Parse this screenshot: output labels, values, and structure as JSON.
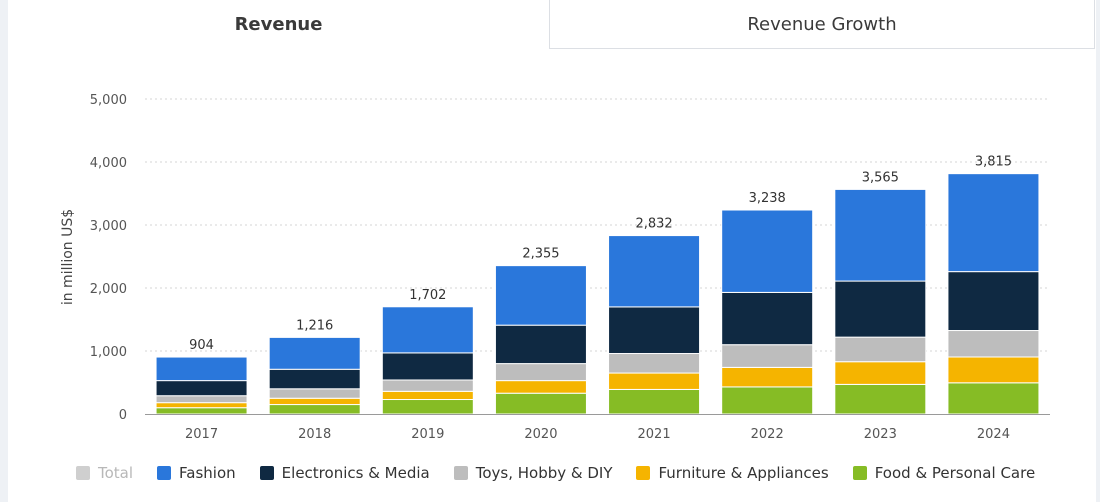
{
  "tabs": [
    {
      "label": "Revenue",
      "active": true
    },
    {
      "label": "Revenue Growth",
      "active": false
    }
  ],
  "chart_data": {
    "type": "bar",
    "stacked": true,
    "categories": [
      "2017",
      "2018",
      "2019",
      "2020",
      "2021",
      "2022",
      "2023",
      "2024"
    ],
    "ylabel": "in million US$",
    "ylim": [
      0,
      5000
    ],
    "yticks": [
      0,
      1000,
      2000,
      3000,
      4000,
      5000
    ],
    "ytick_labels": [
      "0",
      "1,000",
      "2,000",
      "3,000",
      "4,000",
      "5,000"
    ],
    "grid": true,
    "legend_position": "bottom",
    "totals": [
      904,
      1216,
      1702,
      2355,
      2832,
      3238,
      3565,
      3815
    ],
    "total_labels": [
      "904",
      "1,216",
      "1,702",
      "2,355",
      "2,832",
      "3,238",
      "3,565",
      "3,815"
    ],
    "series": [
      {
        "name": "Food & Personal Care",
        "color": "#86bc25",
        "values": [
          100,
          150,
          230,
          330,
          390,
          430,
          470,
          495
        ]
      },
      {
        "name": "Furniture & Appliances",
        "color": "#f5b400",
        "values": [
          80,
          100,
          130,
          200,
          260,
          310,
          360,
          410
        ]
      },
      {
        "name": "Toys, Hobby & DIY",
        "color": "#bdbdbd",
        "values": [
          110,
          150,
          180,
          270,
          310,
          360,
          390,
          420
        ]
      },
      {
        "name": "Electronics & Media",
        "color": "#0f2942",
        "values": [
          240,
          310,
          430,
          610,
          740,
          830,
          890,
          935
        ]
      },
      {
        "name": "Fashion",
        "color": "#2a77db",
        "values": [
          374,
          506,
          732,
          945,
          1132,
          1308,
          1455,
          1555
        ]
      }
    ],
    "legend": [
      {
        "label": "Total",
        "color": "#cfcfcf",
        "enabled": false
      },
      {
        "label": "Fashion",
        "color": "#2a77db",
        "enabled": true
      },
      {
        "label": "Electronics & Media",
        "color": "#0f2942",
        "enabled": true
      },
      {
        "label": "Toys, Hobby & DIY",
        "color": "#bdbdbd",
        "enabled": true
      },
      {
        "label": "Furniture & Appliances",
        "color": "#f5b400",
        "enabled": true
      },
      {
        "label": "Food & Personal Care",
        "color": "#86bc25",
        "enabled": true
      }
    ]
  }
}
